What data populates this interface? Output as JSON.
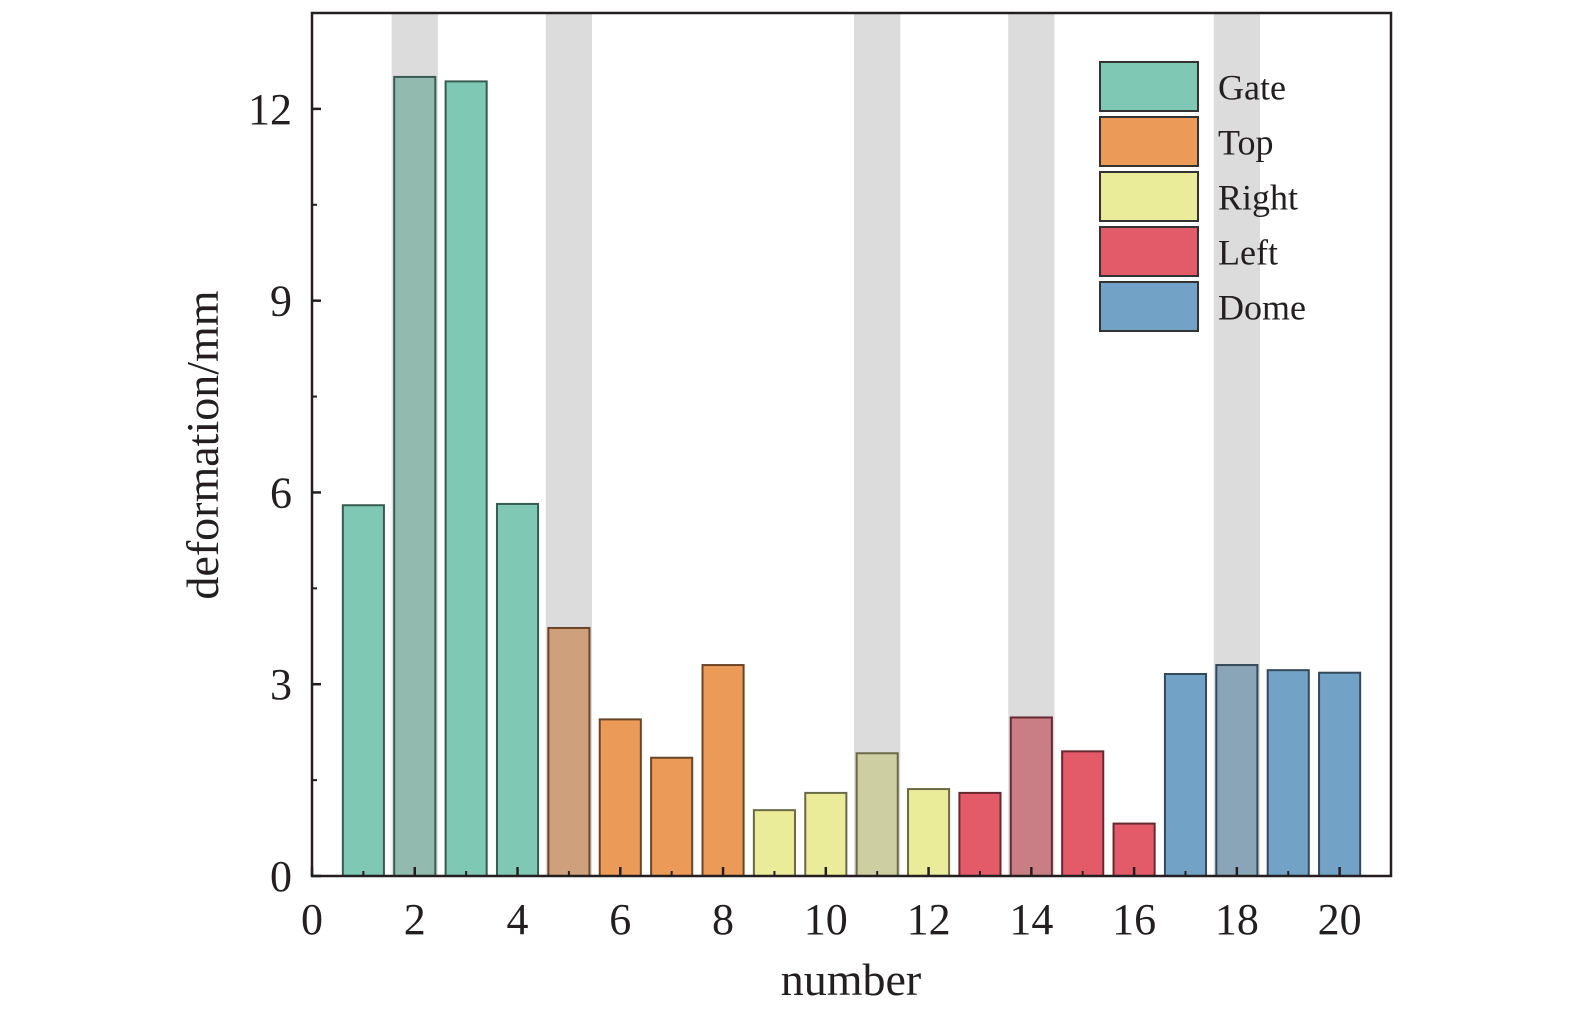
{
  "chart_data": {
    "type": "bar",
    "xlabel": "number",
    "ylabel": "deformation/mm",
    "xlim": [
      0,
      21
    ],
    "ylim": [
      0,
      13.5
    ],
    "xticks": [
      0,
      2,
      4,
      6,
      8,
      10,
      12,
      14,
      16,
      18,
      20
    ],
    "yticks": [
      0,
      3,
      6,
      9,
      12
    ],
    "grid": false,
    "legend_position": "top-right",
    "highlighted_numbers": [
      2,
      5,
      11,
      14,
      18
    ],
    "highlight_color": "#dcdcdc",
    "series": [
      {
        "name": "Gate",
        "color": "#7fc8b3",
        "x": [
          1,
          2,
          3,
          4
        ],
        "values": [
          5.8,
          12.5,
          12.43,
          5.82
        ]
      },
      {
        "name": "Top",
        "color": "#ec9a57",
        "x": [
          5,
          6,
          7,
          8
        ],
        "values": [
          3.88,
          2.45,
          1.85,
          3.3
        ]
      },
      {
        "name": "Right",
        "color": "#eaec9a",
        "x": [
          9,
          10,
          11,
          12
        ],
        "values": [
          1.03,
          1.3,
          1.92,
          1.36
        ]
      },
      {
        "name": "Left",
        "color": "#e35a68",
        "x": [
          13,
          14,
          15,
          16
        ],
        "values": [
          1.3,
          2.48,
          1.95,
          0.82
        ]
      },
      {
        "name": "Dome",
        "color": "#72a2c5",
        "x": [
          17,
          18,
          19,
          20
        ],
        "values": [
          3.16,
          3.3,
          3.22,
          3.18
        ]
      }
    ]
  }
}
